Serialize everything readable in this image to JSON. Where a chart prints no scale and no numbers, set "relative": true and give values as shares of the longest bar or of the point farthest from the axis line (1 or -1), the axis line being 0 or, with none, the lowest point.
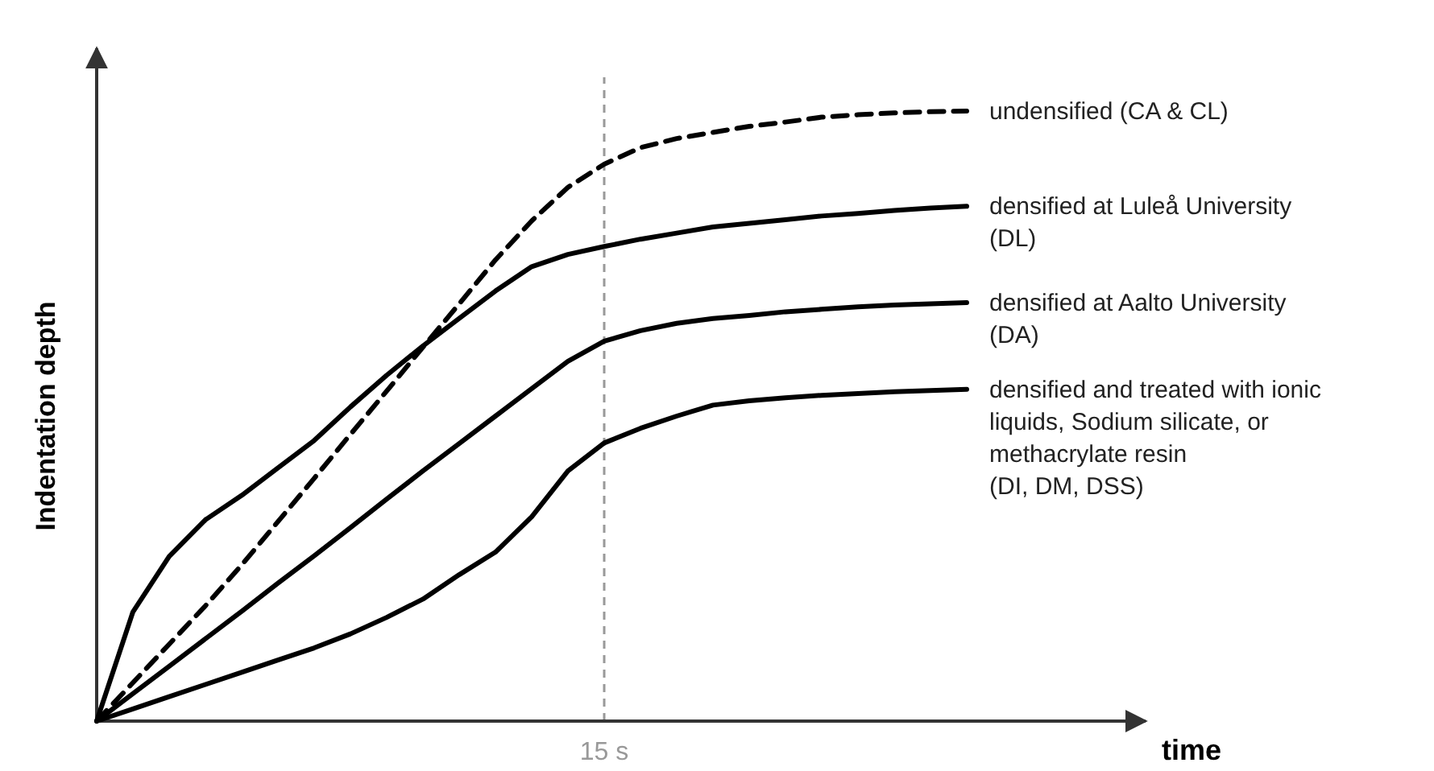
{
  "chart_data": {
    "type": "line",
    "relative": true,
    "annotations": [
      "15 s",
      "time"
    ],
    "ylabel": "Indentation depth",
    "categories": [
      null,
      null,
      null,
      null,
      null,
      null,
      null,
      null,
      null,
      null,
      null,
      null,
      null,
      null,
      null,
      null,
      null,
      null,
      null,
      null,
      null,
      null,
      null,
      null,
      null
    ],
    "marker": "none",
    "series": [
      {
        "name": "undensified (CA & CL)",
        "color": "#000000",
        "line_style": "dashed",
        "values": [
          0,
          0.063,
          0.126,
          0.189,
          0.256,
          0.327,
          0.398,
          0.47,
          0.541,
          0.613,
          0.684,
          0.756,
          0.82,
          0.875,
          0.913,
          0.94,
          0.955,
          0.965,
          0.975,
          0.982,
          0.99,
          0.994,
          0.997,
          0.999,
          1
        ]
      },
      {
        "name": "densified at Luleå University (DL)",
        "color": "#000000",
        "line_style": "solid",
        "values": [
          0,
          0.179,
          0.27,
          0.33,
          0.37,
          0.415,
          0.46,
          0.515,
          0.567,
          0.615,
          0.66,
          0.705,
          0.745,
          0.765,
          0.778,
          0.79,
          0.8,
          0.81,
          0.816,
          0.822,
          0.828,
          0.832,
          0.837,
          0.841,
          0.844
        ]
      },
      {
        "name": "densified at Aalto University (DA)",
        "color": "#000000",
        "line_style": "solid",
        "values": [
          0,
          0.045,
          0.09,
          0.135,
          0.18,
          0.226,
          0.271,
          0.317,
          0.364,
          0.41,
          0.455,
          0.5,
          0.545,
          0.59,
          0.623,
          0.64,
          0.652,
          0.66,
          0.665,
          0.671,
          0.675,
          0.679,
          0.682,
          0.684,
          0.686
        ]
      },
      {
        "name": "densified and treated with ionic liquids, Sodium silicate, or methacrylate resin (DI, DM, DSS)",
        "color": "#000000",
        "line_style": "solid",
        "values": [
          0,
          0.02,
          0.04,
          0.06,
          0.08,
          0.1,
          0.12,
          0.143,
          0.17,
          0.2,
          0.24,
          0.277,
          0.335,
          0.41,
          0.456,
          0.48,
          0.5,
          0.518,
          0.525,
          0.53,
          0.534,
          0.537,
          0.54,
          0.542,
          0.544
        ]
      }
    ]
  }
}
